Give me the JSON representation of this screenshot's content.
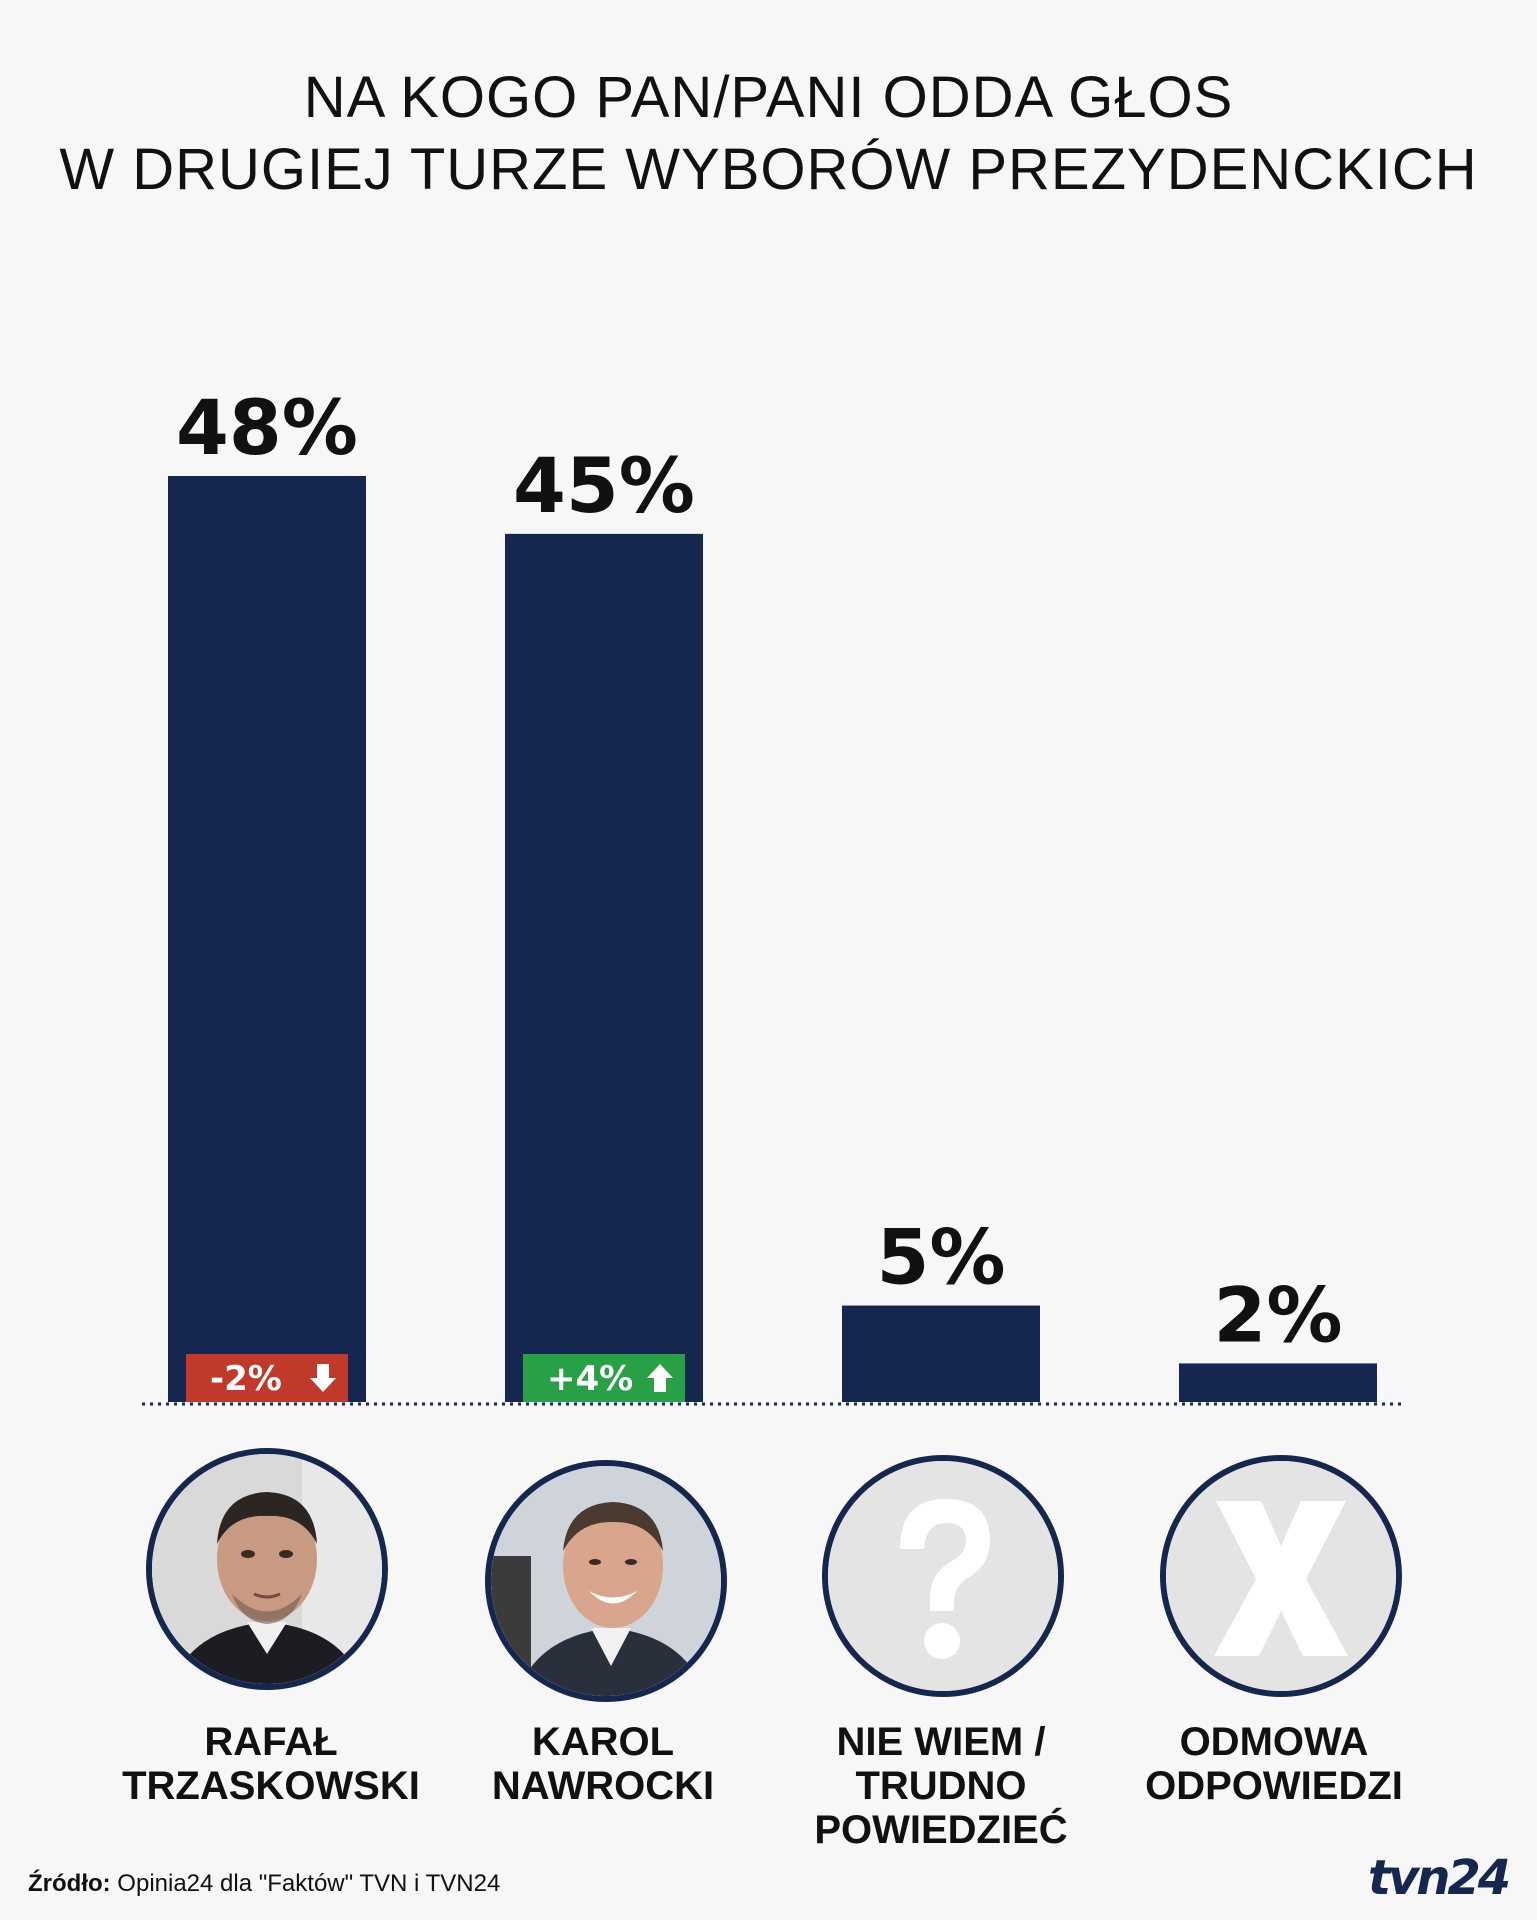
{
  "title_lines": [
    "NA KOGO PAN/PANI ODDA GŁOS",
    "W DRUGIEJ TURZE WYBORÓW PREZYDENCKICH"
  ],
  "colors": {
    "bar": "#16274f",
    "down": "#c0392b",
    "up": "#27a046",
    "baseline": "#16274f"
  },
  "chart_data": {
    "type": "bar",
    "title": "NA KOGO PAN/PANI ODDA GŁOS W DRUGIEJ TURZE WYBORÓW PREZYDENCKICH",
    "categories": [
      "RAFAŁ TRZASKOWSKI",
      "KAROL NAWROCKI",
      "NIE WIEM / TRUDNO POWIEDZIEĆ",
      "ODMOWA ODPOWIEDZI"
    ],
    "values": [
      48,
      45,
      5,
      2
    ],
    "value_labels": [
      "48%",
      "45%",
      "5%",
      "2%"
    ],
    "unit": "%",
    "ylim": [
      0,
      50
    ],
    "grid": false,
    "changes": [
      {
        "category": "RAFAŁ TRZASKOWSKI",
        "label": "-2%",
        "direction": "down"
      },
      {
        "category": "KAROL NAWROCKI",
        "label": "+4%",
        "direction": "up"
      }
    ]
  },
  "candidates": [
    {
      "label_lines": [
        "RAFAŁ",
        "TRZASKOWSKI"
      ],
      "icon": "person-photo"
    },
    {
      "label_lines": [
        "KAROL",
        "NAWROCKI"
      ],
      "icon": "person-photo"
    },
    {
      "label_lines": [
        "NIE WIEM /",
        "TRUDNO",
        "POWIEDZIEĆ"
      ],
      "icon": "question-mark-icon"
    },
    {
      "label_lines": [
        "ODMOWA",
        "ODPOWIEDZI"
      ],
      "icon": "x-mark-icon"
    }
  ],
  "source": {
    "prefix": "Źródło:",
    "text": " Opinia24 dla \"Faktów\" TVN i TVN24"
  },
  "logo": "tvn24"
}
